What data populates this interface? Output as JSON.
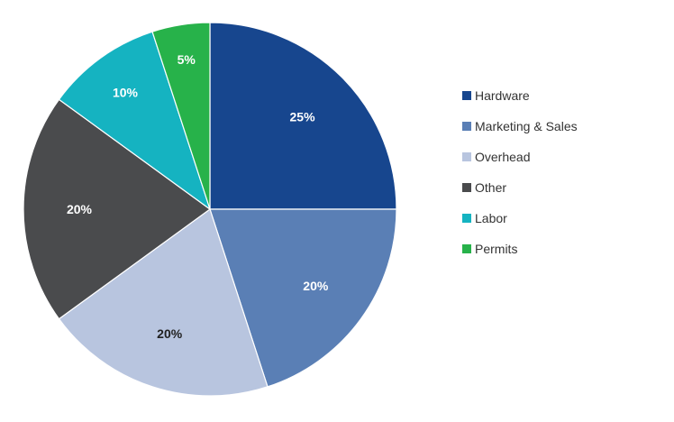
{
  "chart_data": {
    "type": "pie",
    "title": "",
    "legend_position": "right",
    "slices": [
      {
        "name": "Hardware",
        "value": 25,
        "label": "25%",
        "color": "#17468e",
        "label_color": "#ffffff"
      },
      {
        "name": "Marketing & Sales",
        "value": 20,
        "label": "20%",
        "color": "#5a7fb5",
        "label_color": "#ffffff"
      },
      {
        "name": "Overhead",
        "value": 20,
        "label": "20%",
        "color": "#b8c5df",
        "label_color": "#222222"
      },
      {
        "name": "Other",
        "value": 20,
        "label": "20%",
        "color": "#4a4b4d",
        "label_color": "#ffffff"
      },
      {
        "name": "Labor",
        "value": 10,
        "label": "10%",
        "color": "#15b3c1",
        "label_color": "#ffffff"
      },
      {
        "name": "Permits",
        "value": 5,
        "label": "5%",
        "color": "#27b24a",
        "label_color": "#ffffff"
      }
    ]
  }
}
